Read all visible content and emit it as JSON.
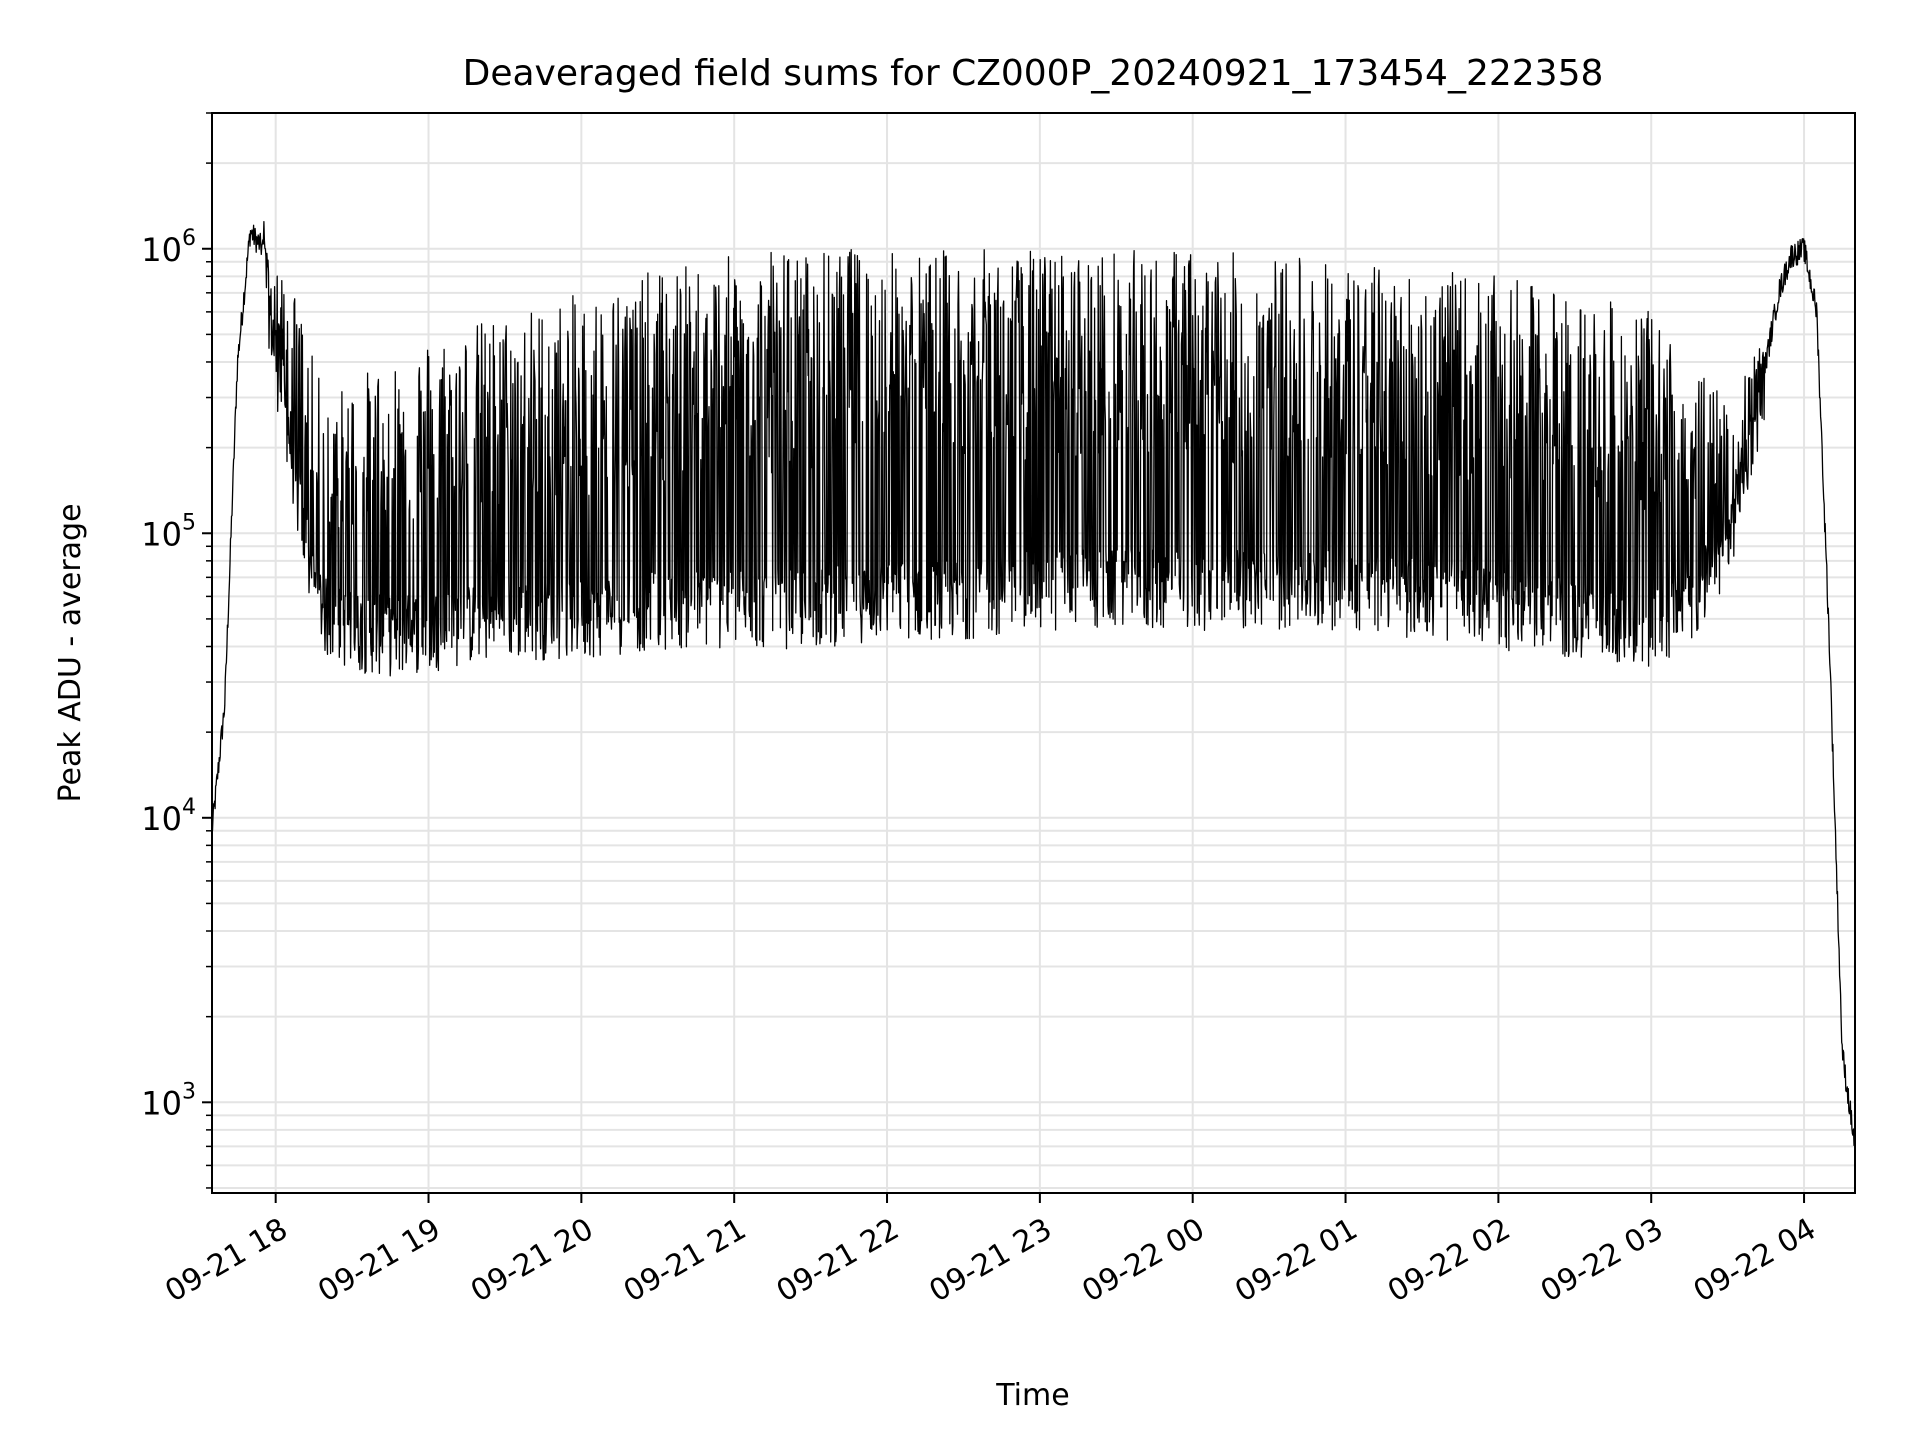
{
  "chart_data": {
    "type": "line",
    "title": "Deaveraged field sums for CZ000P_20240921_173454_222358",
    "xlabel": "Time",
    "ylabel": "Peak ADU - average",
    "yscale": "log",
    "ylim": [
      480,
      3000000
    ],
    "xlim": [
      "2024-09-21 17:35",
      "2024-09-22 04:20"
    ],
    "grid": true,
    "x_ticks": [
      {
        "label": "09-21 18",
        "value": "2024-09-21 18:00"
      },
      {
        "label": "09-21 19",
        "value": "2024-09-21 19:00"
      },
      {
        "label": "09-21 20",
        "value": "2024-09-21 20:00"
      },
      {
        "label": "09-21 21",
        "value": "2024-09-21 21:00"
      },
      {
        "label": "09-21 22",
        "value": "2024-09-21 22:00"
      },
      {
        "label": "09-21 23",
        "value": "2024-09-21 23:00"
      },
      {
        "label": "09-22 00",
        "value": "2024-09-22 00:00"
      },
      {
        "label": "09-22 01",
        "value": "2024-09-22 01:00"
      },
      {
        "label": "09-22 02",
        "value": "2024-09-22 02:00"
      },
      {
        "label": "09-22 03",
        "value": "2024-09-22 03:00"
      },
      {
        "label": "09-22 04",
        "value": "2024-09-22 04:00"
      }
    ],
    "y_ticks": [
      {
        "base": "10",
        "exp": "3",
        "value": 1000
      },
      {
        "base": "10",
        "exp": "4",
        "value": 10000
      },
      {
        "base": "10",
        "exp": "5",
        "value": 100000
      },
      {
        "base": "10",
        "exp": "6",
        "value": 1000000
      }
    ],
    "series": [
      {
        "color": "#000000",
        "x": [
          "2024-09-21 17:35",
          "2024-09-21 17:40",
          "2024-09-21 17:45",
          "2024-09-21 17:50",
          "2024-09-21 17:55",
          "2024-09-21 18:00",
          "2024-09-21 18:05",
          "2024-09-21 18:10",
          "2024-09-21 18:15",
          "2024-09-21 18:20",
          "2024-09-21 18:30",
          "2024-09-21 18:45",
          "2024-09-21 19:00",
          "2024-09-21 19:30",
          "2024-09-21 20:00",
          "2024-09-21 20:30",
          "2024-09-21 21:00",
          "2024-09-21 21:30",
          "2024-09-21 22:00",
          "2024-09-21 22:30",
          "2024-09-21 23:00",
          "2024-09-21 23:30",
          "2024-09-22 00:00",
          "2024-09-22 00:30",
          "2024-09-22 01:00",
          "2024-09-22 01:30",
          "2024-09-22 02:00",
          "2024-09-22 02:30",
          "2024-09-22 03:00",
          "2024-09-22 03:15",
          "2024-09-22 03:30",
          "2024-09-22 03:45",
          "2024-09-22 03:50",
          "2024-09-22 03:55",
          "2024-09-22 04:00",
          "2024-09-22 04:05",
          "2024-09-22 04:10",
          "2024-09-22 04:15",
          "2024-09-22 04:20"
        ],
        "y_base": [
          9000,
          25000,
          400000,
          1150000,
          1000000,
          450000,
          250000,
          120000,
          70000,
          55000,
          50000,
          48000,
          50000,
          55000,
          55000,
          60000,
          60000,
          60000,
          65000,
          65000,
          70000,
          70000,
          70000,
          70000,
          70000,
          65000,
          60000,
          55000,
          50000,
          60000,
          100000,
          400000,
          700000,
          950000,
          1000000,
          600000,
          40000,
          1500,
          700
        ],
        "y_peak": [
          9000,
          25000,
          400000,
          1250000,
          1300000,
          850000,
          800000,
          600000,
          400000,
          300000,
          350000,
          420000,
          500000,
          600000,
          700000,
          850000,
          950000,
          1000000,
          1000000,
          1000000,
          1000000,
          1000000,
          1000000,
          950000,
          900000,
          850000,
          800000,
          700000,
          600000,
          400000,
          300000,
          500000,
          900000,
          1200000,
          1100000,
          700000,
          40000,
          1500,
          700
        ]
      }
    ]
  }
}
